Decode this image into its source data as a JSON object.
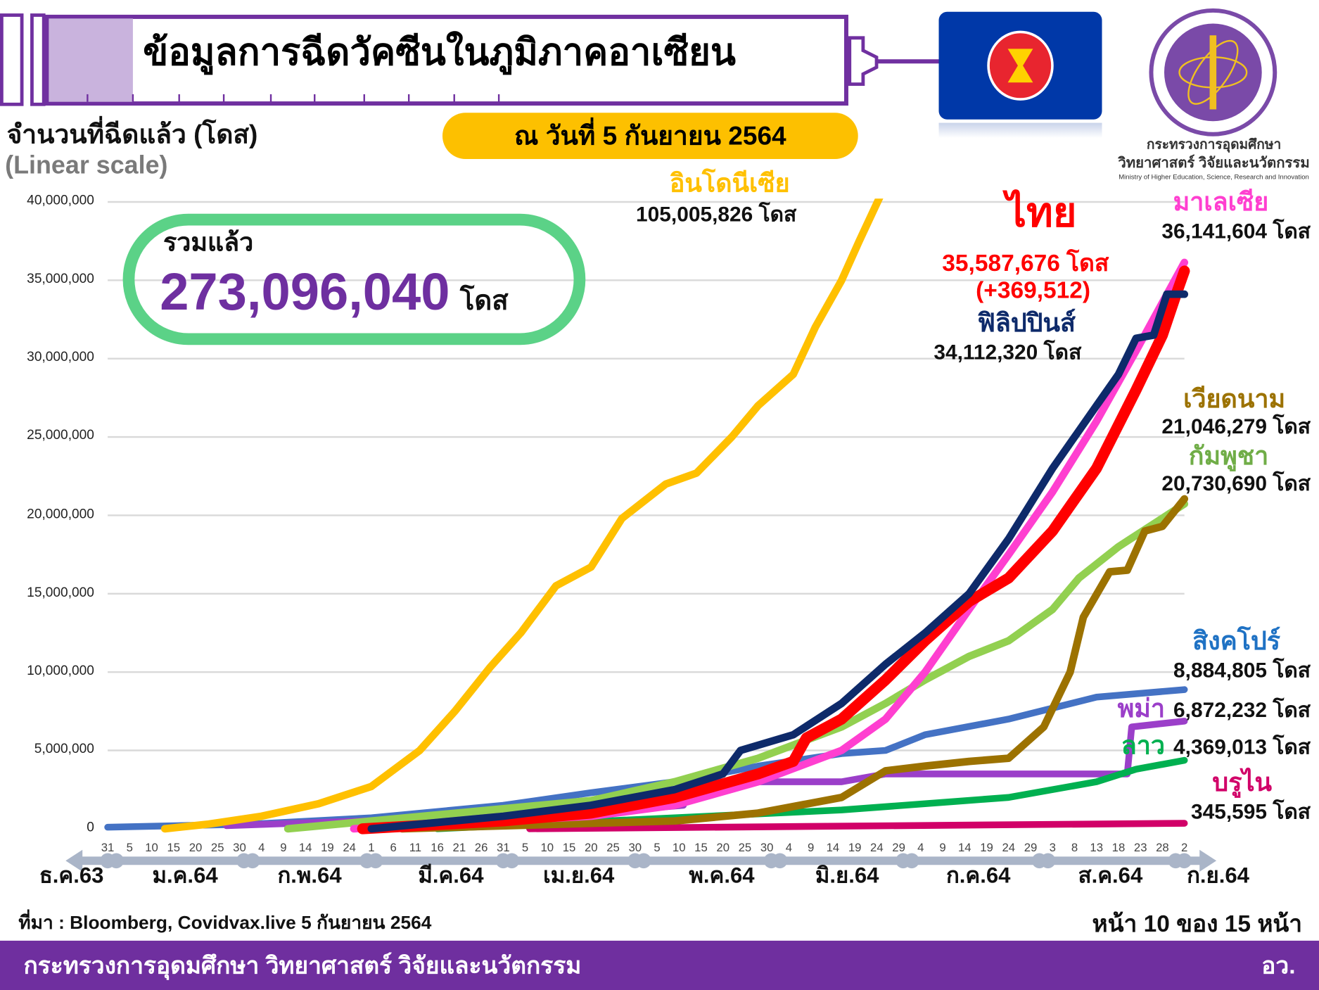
{
  "header": {
    "title": "ข้อมูลการฉีดวัคซีนในภูมิภาคอาเซียน",
    "date": "ณ วันที่ 5 กันยายน 2564",
    "ministry_th_1": "กระทรวงการอุดมศึกษา",
    "ministry_th_2": "วิทยาศาสตร์ วิจัยและนวัตกรรม",
    "ministry_en": "Ministry of Higher Education, Science, Research and Innovation"
  },
  "total": {
    "label": "รวมแล้ว",
    "value": "273,096,040",
    "unit": "โดส"
  },
  "footer": {
    "source": "ที่มา : Bloomberg, Covidvax.live 5 กันยายน 2564",
    "page": "หน้า 10 ของ 15 หน้า",
    "org": "กระทรวงการอุดมศึกษา วิทยาศาสตร์ วิจัยและนวัตกรรม",
    "org_short": "อว."
  },
  "chart_data": {
    "type": "line",
    "ylabel": "จำนวนที่ฉีดแล้ว (โดส)",
    "yscale": "(Linear scale)",
    "ylim": [
      0,
      40000000
    ],
    "yticks": [
      "0",
      "5,000,000",
      "10,000,000",
      "15,000,000",
      "20,000,000",
      "25,000,000",
      "30,000,000",
      "35,000,000",
      "40,000,000"
    ],
    "x_unit": "days since 31 Dec 2020",
    "xlim": [
      0,
      245
    ],
    "day_ticks": [
      "31",
      "5",
      "10",
      "15",
      "20",
      "25",
      "30",
      "4",
      "9",
      "14",
      "19",
      "24",
      "1",
      "6",
      "11",
      "16",
      "21",
      "26",
      "31",
      "5",
      "10",
      "15",
      "20",
      "25",
      "30",
      "5",
      "10",
      "15",
      "20",
      "25",
      "30",
      "4",
      "9",
      "14",
      "19",
      "24",
      "29",
      "4",
      "9",
      "14",
      "19",
      "24",
      "29",
      "3",
      "8",
      "13",
      "18",
      "23",
      "28",
      "2"
    ],
    "months": [
      "ธ.ค.63",
      "ม.ค.64",
      "ก.พ.64",
      "มี.ค.64",
      "เม.ย.64",
      "พ.ค.64",
      "มิ.ย.64",
      "ก.ค.64",
      "ส.ค.64",
      "ก.ย.64"
    ],
    "grid": true,
    "series": [
      {
        "key": "singapore",
        "name": "สิงคโปร์",
        "label": "8,884,805 โดส",
        "color": "#4472c4",
        "points": [
          [
            0,
            0.1
          ],
          [
            33,
            0.3
          ],
          [
            60,
            0.7
          ],
          [
            90,
            1.5
          ],
          [
            110,
            2.3
          ],
          [
            129,
            3
          ],
          [
            148,
            4
          ],
          [
            167,
            4.8
          ],
          [
            177,
            5
          ],
          [
            186,
            6
          ],
          [
            205,
            7
          ],
          [
            225,
            8.4
          ],
          [
            245,
            8.88
          ]
        ]
      },
      {
        "key": "myanmar",
        "name": "พม่า",
        "label": "6,872,232 โดส",
        "color": "#9b3fc9",
        "points": [
          [
            27,
            0.2
          ],
          [
            110,
            1
          ],
          [
            131,
            1.5
          ],
          [
            132,
            3
          ],
          [
            167,
            3
          ],
          [
            177,
            3.5
          ],
          [
            232,
            3.5
          ],
          [
            233,
            6.5
          ],
          [
            245,
            6.87
          ]
        ]
      },
      {
        "key": "cambodia",
        "name": "กัมพูชา",
        "label": "20,730,690 โดส",
        "color": "#92d050",
        "points": [
          [
            41,
            0
          ],
          [
            110,
            1.8
          ],
          [
            129,
            3
          ],
          [
            148,
            4.5
          ],
          [
            167,
            6.5
          ],
          [
            177,
            8
          ],
          [
            186,
            9.5
          ],
          [
            196,
            11
          ],
          [
            205,
            12
          ],
          [
            215,
            14
          ],
          [
            221,
            16
          ],
          [
            230,
            18
          ],
          [
            245,
            20.73
          ]
        ]
      },
      {
        "key": "laos",
        "name": "ลาว",
        "label": "4,369,013 โดส",
        "color": "#00b050",
        "points": [
          [
            75,
            0
          ],
          [
            129,
            0.7
          ],
          [
            167,
            1.2
          ],
          [
            205,
            2
          ],
          [
            225,
            3
          ],
          [
            234,
            3.8
          ],
          [
            245,
            4.37
          ]
        ]
      },
      {
        "key": "brunei",
        "name": "บรูไน",
        "label": "345,595 โดส",
        "color": "#d10068",
        "points": [
          [
            96,
            0
          ],
          [
            245,
            0.35
          ]
        ]
      },
      {
        "key": "vietnam",
        "name": "เวียดนาม",
        "label": "21,046,279 โดส",
        "color": "#9c7200",
        "points": [
          [
            67,
            0
          ],
          [
            129,
            0.5
          ],
          [
            148,
            1
          ],
          [
            167,
            2
          ],
          [
            177,
            3.7
          ],
          [
            186,
            4
          ],
          [
            196,
            4.3
          ],
          [
            205,
            4.5
          ],
          [
            213,
            6.5
          ],
          [
            219,
            10
          ],
          [
            222,
            13.5
          ],
          [
            228,
            16.4
          ],
          [
            232,
            16.5
          ],
          [
            236,
            19
          ],
          [
            240,
            19.3
          ],
          [
            245,
            21.05
          ]
        ]
      },
      {
        "key": "indonesia",
        "name": "อินโดนีเซีย",
        "label": "105,005,826 โดส",
        "color": "#ffc000",
        "points": [
          [
            13,
            0
          ],
          [
            23,
            0.3
          ],
          [
            35,
            0.8
          ],
          [
            48,
            1.6
          ],
          [
            60,
            2.7
          ],
          [
            71,
            5
          ],
          [
            79,
            7.5
          ],
          [
            87,
            10.3
          ],
          [
            94,
            12.5
          ],
          [
            102,
            15.5
          ],
          [
            110,
            16.7
          ],
          [
            117,
            19.8
          ],
          [
            127,
            22
          ],
          [
            134,
            22.7
          ],
          [
            142,
            25
          ],
          [
            148,
            27
          ],
          [
            156,
            29
          ],
          [
            161,
            32
          ],
          [
            167,
            35
          ],
          [
            171,
            37.5
          ],
          [
            176,
            40.5
          ]
        ]
      },
      {
        "key": "malaysia",
        "name": "มาเลเซีย",
        "label": "36,141,604 โดส",
        "color": "#ff3fd0",
        "points": [
          [
            56,
            0
          ],
          [
            110,
            0.8
          ],
          [
            129,
            1.5
          ],
          [
            148,
            3
          ],
          [
            167,
            5
          ],
          [
            177,
            7
          ],
          [
            186,
            10
          ],
          [
            196,
            14
          ],
          [
            205,
            17.5
          ],
          [
            215,
            21.5
          ],
          [
            225,
            26
          ],
          [
            234,
            30.5
          ],
          [
            245,
            36.14
          ]
        ]
      },
      {
        "key": "thailand",
        "name": "ไทย",
        "label": "35,587,676 โดส",
        "extra": "(+369,512)",
        "color": "#ff0000",
        "points": [
          [
            58,
            0
          ],
          [
            90,
            0.5
          ],
          [
            110,
            1
          ],
          [
            129,
            2
          ],
          [
            148,
            3.5
          ],
          [
            156,
            4.3
          ],
          [
            159,
            5.8
          ],
          [
            167,
            7
          ],
          [
            177,
            9.5
          ],
          [
            186,
            12
          ],
          [
            196,
            14.5
          ],
          [
            205,
            16
          ],
          [
            215,
            19
          ],
          [
            225,
            23
          ],
          [
            234,
            28
          ],
          [
            240,
            31.5
          ],
          [
            243,
            34
          ],
          [
            245,
            35.59
          ]
        ]
      },
      {
        "key": "philippines",
        "name": "ฟิลิปปินส์",
        "label": "34,112,320 โดส",
        "color": "#0e2a6a",
        "points": [
          [
            60,
            0
          ],
          [
            90,
            0.8
          ],
          [
            110,
            1.5
          ],
          [
            129,
            2.5
          ],
          [
            140,
            3.5
          ],
          [
            144,
            5
          ],
          [
            156,
            6
          ],
          [
            167,
            8
          ],
          [
            177,
            10.5
          ],
          [
            186,
            12.5
          ],
          [
            196,
            15
          ],
          [
            205,
            18.5
          ],
          [
            215,
            23
          ],
          [
            225,
            27
          ],
          [
            230,
            29
          ],
          [
            234,
            31.3
          ],
          [
            238,
            31.5
          ],
          [
            241,
            34.11
          ],
          [
            245,
            34.11
          ]
        ]
      }
    ]
  }
}
